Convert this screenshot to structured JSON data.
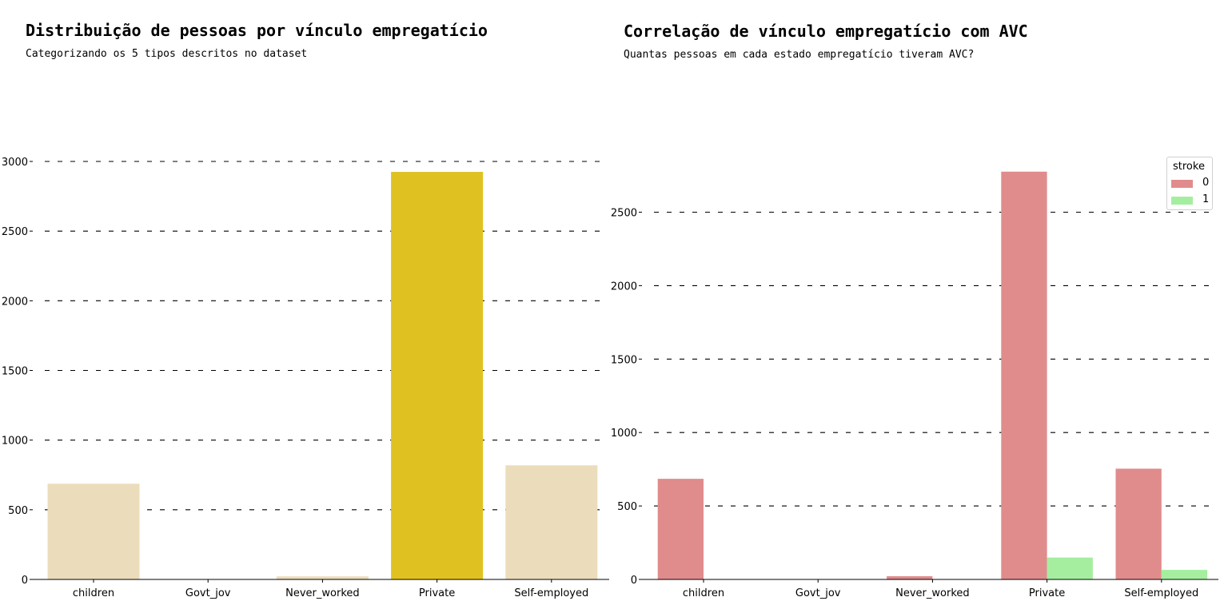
{
  "chart_data": [
    {
      "type": "bar",
      "title": "Distribuição de pessoas por vínculo empregatício",
      "subtitle": "Categorizando os 5 tipos descritos no dataset",
      "categories": [
        "children",
        "Govt_jov",
        "Never_worked",
        "Private",
        "Self-employed"
      ],
      "values": [
        687,
        0,
        22,
        2925,
        819
      ],
      "colors": [
        "#ebdcbb",
        "#ebdcbb",
        "#ebdcbb",
        "#dfc222",
        "#ebdcbb"
      ],
      "ylim": [
        0,
        3000
      ],
      "yticks": [
        0,
        500,
        1000,
        1500,
        2000,
        2500,
        3000
      ],
      "grid": "dashed-horizontal",
      "xlabel": "",
      "ylabel": ""
    },
    {
      "type": "bar",
      "title": "Correlação de vínculo empregatício com AVC",
      "subtitle": "Quantas pessoas em cada estado empregatício tiveram AVC?",
      "categories": [
        "children",
        "Govt_jov",
        "Never_worked",
        "Private",
        "Self-employed"
      ],
      "series": [
        {
          "name": "0",
          "color": "#e08c8c",
          "values": [
            685,
            0,
            22,
            2776,
            754
          ]
        },
        {
          "name": "1",
          "color": "#a5eea0",
          "values": [
            2,
            0,
            0,
            149,
            65
          ]
        }
      ],
      "ylim": [
        0,
        2800
      ],
      "yticks": [
        0,
        500,
        1000,
        1500,
        2000,
        2500
      ],
      "grid": "dashed-horizontal",
      "legend": {
        "title": "stroke",
        "placement": "top-right"
      },
      "xlabel": "",
      "ylabel": ""
    }
  ]
}
